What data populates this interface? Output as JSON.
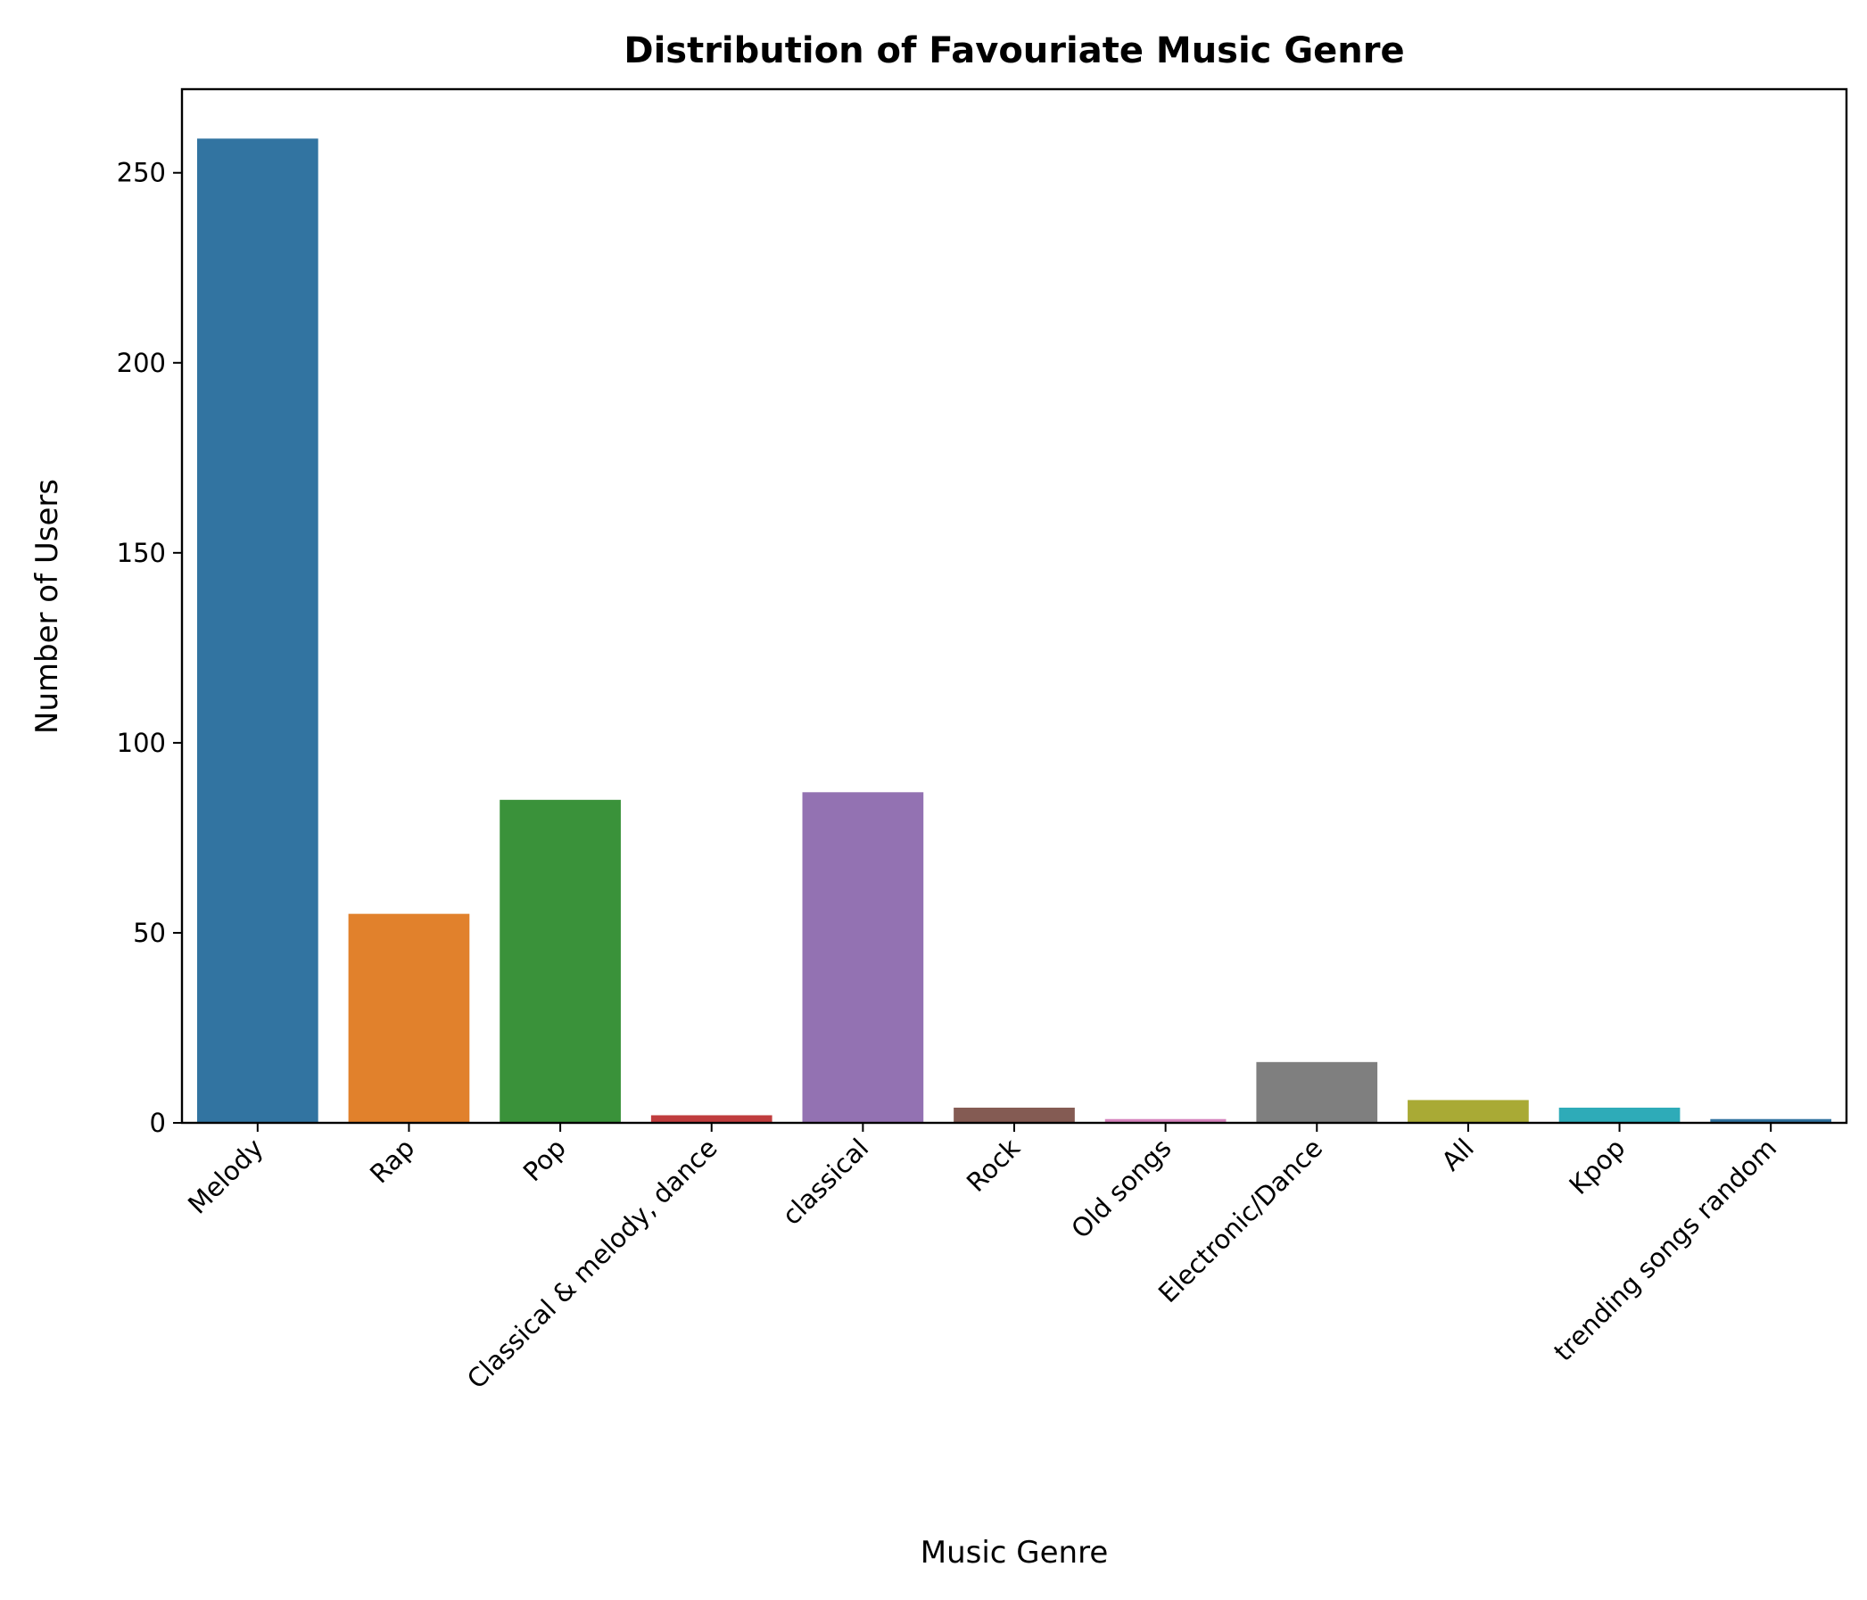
{
  "chart_data": {
    "type": "bar",
    "title": "Distribution of Favouriate Music Genre",
    "xlabel": "Music Genre",
    "ylabel": "Number of Users",
    "categories": [
      "Melody",
      "Rap",
      "Pop",
      "Classical & melody, dance",
      "classical",
      "Rock",
      "Old songs",
      "Electronic/Dance",
      "All",
      "Kpop",
      "trending songs random"
    ],
    "values": [
      259,
      55,
      85,
      2,
      87,
      4,
      1,
      16,
      6,
      4,
      1
    ],
    "colors": [
      "#3274a1",
      "#e1812c",
      "#3a923a",
      "#c03d3e",
      "#9372b2",
      "#845b53",
      "#d684bd",
      "#7f7f7f",
      "#a9aa35",
      "#2eabb8",
      "#3274a1"
    ],
    "ylim": [
      0,
      272
    ],
    "yticks": [
      0,
      50,
      100,
      150,
      200,
      250
    ],
    "grid": false
  }
}
